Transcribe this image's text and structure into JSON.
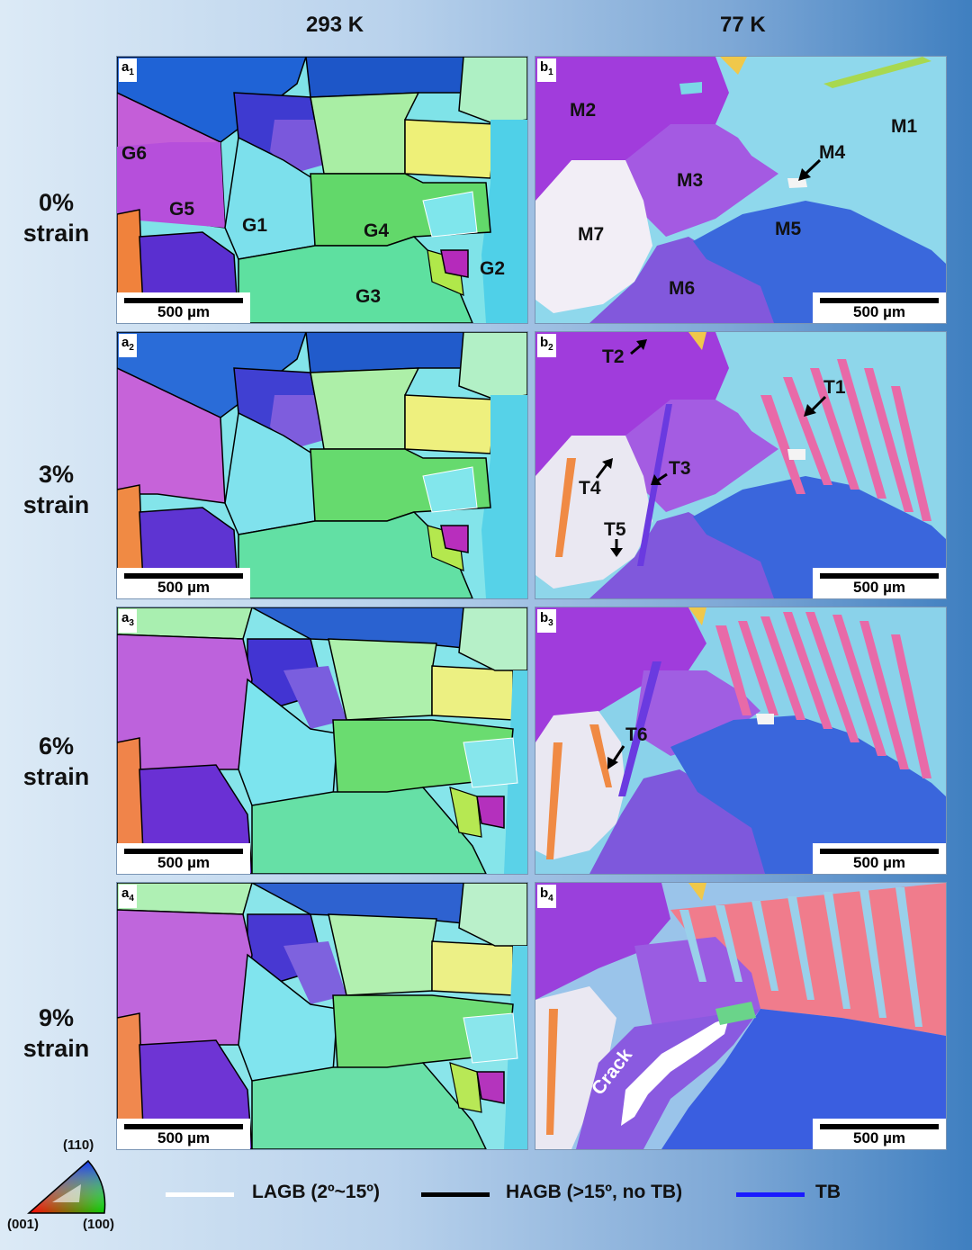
{
  "headers": {
    "left": "293 K",
    "right": "77 K"
  },
  "rows": [
    {
      "line1": "0%",
      "line2": "strain"
    },
    {
      "line1": "3%",
      "line2": "strain"
    },
    {
      "line1": "6%",
      "line2": "strain"
    },
    {
      "line1": "9%",
      "line2": "strain"
    }
  ],
  "panels": {
    "a1": {
      "letter": "a",
      "index": "1"
    },
    "a2": {
      "letter": "a",
      "index": "2"
    },
    "a3": {
      "letter": "a",
      "index": "3"
    },
    "a4": {
      "letter": "a",
      "index": "4"
    },
    "b1": {
      "letter": "b",
      "index": "1"
    },
    "b2": {
      "letter": "b",
      "index": "2"
    },
    "b3": {
      "letter": "b",
      "index": "3"
    },
    "b4": {
      "letter": "b",
      "index": "4"
    }
  },
  "scale_bar": "500 µm",
  "grain_labels_a1": [
    "G6",
    "G5",
    "G1",
    "G4",
    "G3",
    "G2"
  ],
  "grain_labels_b1": [
    "M2",
    "M1",
    "M4",
    "M3",
    "M5",
    "M7",
    "M6"
  ],
  "twin_labels_b2": [
    "T2",
    "T1",
    "T4",
    "T3",
    "T5"
  ],
  "twin_label_b3": "T6",
  "crack_label_b4": "Crack",
  "legend": {
    "lagb": "LAGB (2º~15º)",
    "hagb": "HAGB (>15º, no TB)",
    "tb": "TB",
    "lagb_color": "#ffffff",
    "hagb_color": "#000000",
    "tb_color": "#1a1aff"
  },
  "ipf": {
    "top": "(110)",
    "left": "(001)",
    "right": "(100)"
  }
}
